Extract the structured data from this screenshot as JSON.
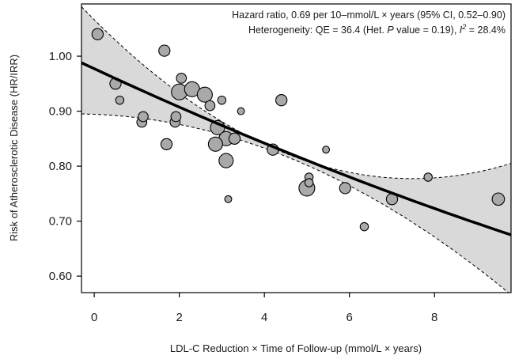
{
  "chart_data": {
    "type": "scatter",
    "title": "",
    "xlabel": "LDL-C Reduction × Time of Follow-up (mmol/L × years)",
    "ylabel": "Risk of Atherosclerotic Disease (HR/IRR)",
    "xlim": [
      -0.3,
      9.8
    ],
    "ylim": [
      0.57,
      1.095
    ],
    "x_ticks": [
      0,
      2,
      4,
      6,
      8
    ],
    "x_tick_labels": [
      "0",
      "2",
      "4",
      "6",
      "8"
    ],
    "y_ticks": [
      0.6,
      0.7,
      0.8,
      0.9,
      1.0
    ],
    "y_tick_labels": [
      "0.60",
      "0.70",
      "0.80",
      "0.90",
      "1.00"
    ],
    "grid": false,
    "annotations": {
      "line1": "Hazard ratio, 0.69 per 10–mmol/L × years (95% CI, 0.52–0.90)",
      "line2_prefix": "Heterogeneity: QE = 36.4 (Het. ",
      "line2_p": "P",
      "line2_mid": " value = 0.19), ",
      "line2_i": "I",
      "line2_sup": "2",
      "line2_suffix": " = 28.4%"
    },
    "regression": {
      "x": [
        -0.3,
        9.8
      ],
      "y": [
        0.988,
        0.675
      ],
      "ci_upper": [
        1.09,
        0.805
      ],
      "ci_lower": [
        0.895,
        0.566
      ],
      "ci_mid_x": 3.2,
      "ci_mid_upper": 0.872,
      "ci_mid_lower": 0.853
    },
    "points": [
      {
        "x": 0.08,
        "y": 1.04,
        "w": 3
      },
      {
        "x": 0.5,
        "y": 0.95,
        "w": 3
      },
      {
        "x": 0.6,
        "y": 0.92,
        "w": 1
      },
      {
        "x": 1.12,
        "y": 0.88,
        "w": 2
      },
      {
        "x": 1.15,
        "y": 0.89,
        "w": 2
      },
      {
        "x": 1.65,
        "y": 1.01,
        "w": 3
      },
      {
        "x": 1.7,
        "y": 0.84,
        "w": 3
      },
      {
        "x": 1.9,
        "y": 0.88,
        "w": 2
      },
      {
        "x": 1.92,
        "y": 0.89,
        "w": 2
      },
      {
        "x": 2.0,
        "y": 0.935,
        "w": 8
      },
      {
        "x": 2.05,
        "y": 0.96,
        "w": 2
      },
      {
        "x": 2.3,
        "y": 0.94,
        "w": 7
      },
      {
        "x": 2.6,
        "y": 0.93,
        "w": 7
      },
      {
        "x": 2.72,
        "y": 0.91,
        "w": 2
      },
      {
        "x": 3.0,
        "y": 0.92,
        "w": 1
      },
      {
        "x": 3.45,
        "y": 0.9,
        "w": 0.5
      },
      {
        "x": 2.9,
        "y": 0.87,
        "w": 6
      },
      {
        "x": 3.1,
        "y": 0.85,
        "w": 6
      },
      {
        "x": 3.3,
        "y": 0.85,
        "w": 3
      },
      {
        "x": 2.85,
        "y": 0.84,
        "w": 6
      },
      {
        "x": 3.1,
        "y": 0.81,
        "w": 6
      },
      {
        "x": 3.15,
        "y": 0.74,
        "w": 0.5
      },
      {
        "x": 4.2,
        "y": 0.83,
        "w": 3
      },
      {
        "x": 4.4,
        "y": 0.92,
        "w": 3
      },
      {
        "x": 5.0,
        "y": 0.76,
        "w": 8
      },
      {
        "x": 5.05,
        "y": 0.78,
        "w": 1
      },
      {
        "x": 5.05,
        "y": 0.77,
        "w": 1
      },
      {
        "x": 5.45,
        "y": 0.83,
        "w": 0.5
      },
      {
        "x": 5.9,
        "y": 0.76,
        "w": 3
      },
      {
        "x": 6.35,
        "y": 0.69,
        "w": 1
      },
      {
        "x": 7.0,
        "y": 0.74,
        "w": 3
      },
      {
        "x": 7.85,
        "y": 0.78,
        "w": 1
      },
      {
        "x": 9.5,
        "y": 0.74,
        "w": 4
      }
    ]
  }
}
